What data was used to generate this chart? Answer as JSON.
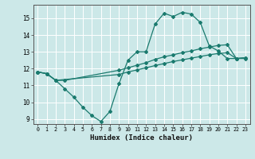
{
  "xlabel": "Humidex (Indice chaleur)",
  "background_color": "#cce8e8",
  "grid_color": "#ffffff",
  "line_color": "#1a7a6e",
  "xlim": [
    -0.5,
    23.5
  ],
  "ylim": [
    8.7,
    15.8
  ],
  "yticks": [
    9,
    10,
    11,
    12,
    13,
    14,
    15
  ],
  "xticks": [
    0,
    1,
    2,
    3,
    4,
    5,
    6,
    7,
    8,
    9,
    10,
    11,
    12,
    13,
    14,
    15,
    16,
    17,
    18,
    19,
    20,
    21,
    22,
    23
  ],
  "line1_x": [
    0,
    1,
    2,
    3,
    4,
    5,
    6,
    7,
    8,
    9,
    10,
    11,
    12,
    13,
    14,
    15,
    16,
    17,
    18,
    19,
    20,
    21,
    22,
    23
  ],
  "line1_y": [
    11.8,
    11.7,
    11.3,
    10.8,
    10.3,
    9.7,
    9.2,
    8.85,
    9.45,
    11.1,
    12.5,
    13.0,
    13.0,
    14.65,
    15.3,
    15.1,
    15.35,
    15.25,
    14.75,
    13.35,
    13.05,
    12.6,
    12.6,
    12.6
  ],
  "line2_x": [
    0,
    1,
    2,
    3,
    9,
    10,
    11,
    12,
    13,
    14,
    15,
    16,
    17,
    18,
    19,
    20,
    21,
    22,
    23
  ],
  "line2_y": [
    11.8,
    11.7,
    11.3,
    11.3,
    11.9,
    12.05,
    12.2,
    12.35,
    12.55,
    12.7,
    12.82,
    12.95,
    13.05,
    13.18,
    13.28,
    13.38,
    13.42,
    12.6,
    12.65
  ],
  "line3_x": [
    0,
    1,
    2,
    9,
    10,
    11,
    12,
    13,
    14,
    15,
    16,
    17,
    18,
    19,
    20,
    21,
    22,
    23
  ],
  "line3_y": [
    11.8,
    11.7,
    11.3,
    11.65,
    11.8,
    11.92,
    12.05,
    12.18,
    12.3,
    12.42,
    12.52,
    12.62,
    12.72,
    12.82,
    12.9,
    12.95,
    12.6,
    12.65
  ]
}
